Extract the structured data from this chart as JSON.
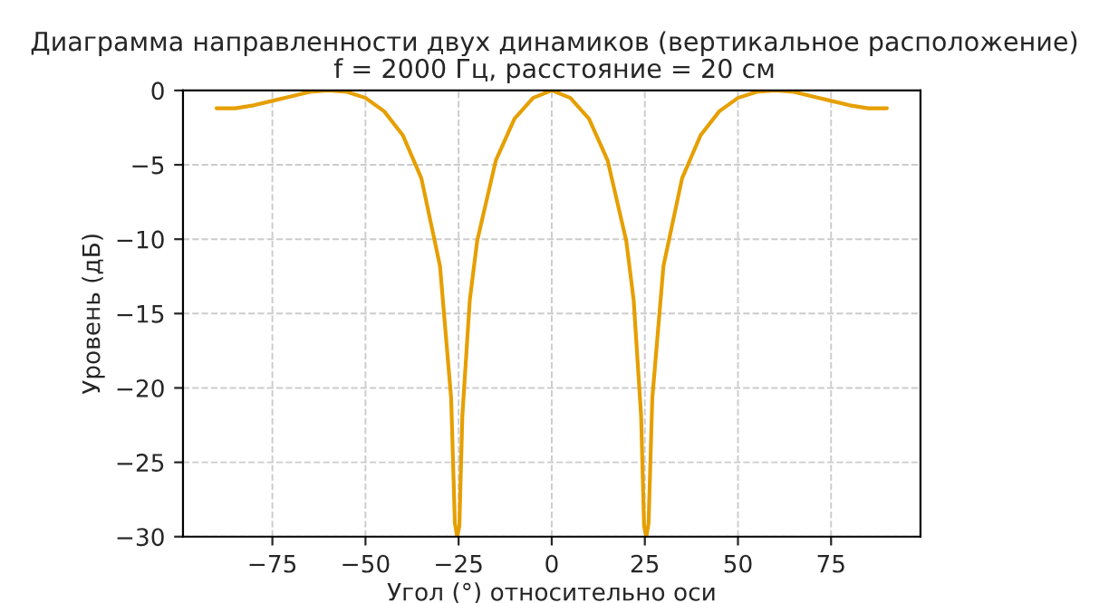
{
  "chart_data": {
    "type": "line",
    "title": "Диаграмма направленности двух динамиков (вертикальное расположение)\nf = 2000 Гц, расстояние = 20 см",
    "xlabel": "Угол (°) относительно оси",
    "ylabel": "Уровень (дБ)",
    "x": [
      -90,
      -85,
      -80,
      -75,
      -70,
      -65,
      -60,
      -55,
      -50,
      -45,
      -40,
      -35,
      -30,
      -27,
      -26,
      -25.4,
      -24.8,
      -24,
      -22,
      -20,
      -15,
      -10,
      -5,
      0,
      5,
      10,
      15,
      20,
      22,
      24,
      24.8,
      25.4,
      26,
      27,
      30,
      35,
      40,
      45,
      50,
      55,
      60,
      65,
      70,
      75,
      80,
      85,
      90
    ],
    "series": [
      {
        "color": "#e69f00",
        "values": [
          -1.2,
          -1.2,
          -1.0,
          -0.7,
          -0.4,
          -0.1,
          0,
          -0.1,
          -0.5,
          -1.4,
          -3.0,
          -5.9,
          -11.8,
          -20.7,
          -29.1,
          -30,
          -29.3,
          -21.9,
          -14.1,
          -10.1,
          -4.7,
          -1.9,
          -0.5,
          0,
          -0.5,
          -1.9,
          -4.7,
          -10.1,
          -14.1,
          -21.9,
          -29.3,
          -30,
          -29.1,
          -20.7,
          -11.8,
          -5.9,
          -3.0,
          -1.4,
          -0.5,
          -0.1,
          0,
          -0.1,
          -0.4,
          -0.7,
          -1.0,
          -1.2,
          -1.2
        ]
      }
    ],
    "xlim": [
      -99,
      99
    ],
    "ylim": [
      -30,
      0
    ],
    "xticks": [
      -75,
      -50,
      -25,
      0,
      25,
      50,
      75
    ],
    "yticks": [
      -30,
      -25,
      -20,
      -15,
      -10,
      -5,
      0
    ],
    "grid": true,
    "line_style": "solid"
  }
}
